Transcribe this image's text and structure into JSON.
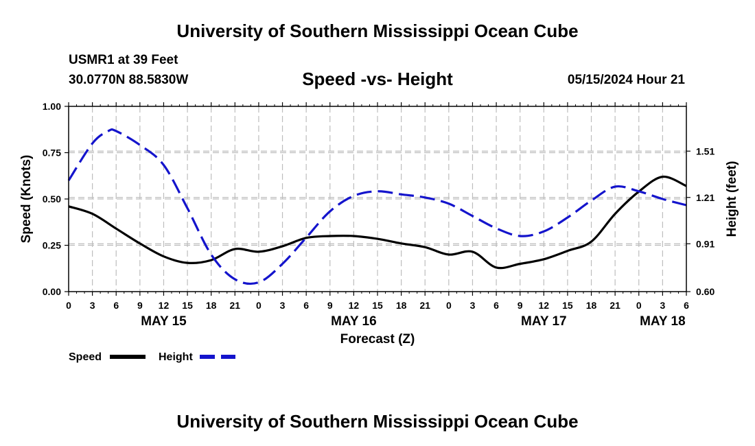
{
  "header": {
    "title": "University of Southern Mississippi Ocean Cube",
    "station": "USMR1 at 39 Feet",
    "coords": "30.0770N  88.5830W",
    "timestamp": "05/15/2024 Hour 21"
  },
  "footer": {
    "title": "University of Southern Mississippi Ocean Cube"
  },
  "colors": {
    "speed": "#000000",
    "height": "#1414cc",
    "grid": "#bdbdbd"
  },
  "chart_data": {
    "type": "line",
    "title": "Speed -vs- Height",
    "xlabel": "Forecast (Z)",
    "ylabel": "Speed (Knots)",
    "y2label": "Height (feet)",
    "xlim": [
      0,
      78
    ],
    "ylim": [
      0,
      1
    ],
    "y2lim": [
      0.6,
      1.8
    ],
    "x_tick_labels": [
      "0",
      "3",
      "6",
      "9",
      "12",
      "15",
      "18",
      "21",
      "0",
      "3",
      "6",
      "9",
      "12",
      "15",
      "18",
      "21",
      "0",
      "3",
      "6",
      "9",
      "12",
      "15",
      "18",
      "21",
      "0",
      "3",
      "6"
    ],
    "y_ticks": [
      {
        "value": 0,
        "label": "0.00"
      },
      {
        "value": 0.25,
        "label": "0.25"
      },
      {
        "value": 0.5,
        "label": "0.50"
      },
      {
        "value": 0.75,
        "label": "0.75"
      },
      {
        "value": 1,
        "label": "1.00"
      }
    ],
    "y2_ticks": [
      {
        "value": 0.6,
        "label": "0.60"
      },
      {
        "value": 0.91,
        "label": "0.91"
      },
      {
        "value": 1.21,
        "label": "1.21"
      },
      {
        "value": 1.51,
        "label": "1.51"
      }
    ],
    "day_labels": [
      {
        "x": 12,
        "label": "MAY 15"
      },
      {
        "x": 36,
        "label": "MAY 16"
      },
      {
        "x": 60,
        "label": "MAY 17"
      },
      {
        "x": 75,
        "label": "MAY 18"
      }
    ],
    "series": [
      {
        "name": "Speed",
        "axis": "left",
        "style": "solid",
        "x": [
          0,
          3,
          6,
          9,
          12,
          15,
          18,
          21,
          24,
          27,
          30,
          33,
          36,
          39,
          42,
          45,
          48,
          51,
          54,
          57,
          60,
          63,
          66,
          69,
          72,
          75,
          78
        ],
        "y": [
          0.46,
          0.42,
          0.34,
          0.26,
          0.19,
          0.155,
          0.17,
          0.23,
          0.215,
          0.245,
          0.29,
          0.3,
          0.3,
          0.285,
          0.26,
          0.24,
          0.2,
          0.215,
          0.13,
          0.15,
          0.175,
          0.22,
          0.27,
          0.42,
          0.54,
          0.62,
          0.57
        ]
      },
      {
        "name": "Height",
        "axis": "right",
        "style": "dashed",
        "x": [
          0,
          3,
          5,
          6,
          9,
          12,
          15,
          18,
          21,
          24,
          27,
          30,
          33,
          36,
          39,
          42,
          45,
          48,
          51,
          54,
          57,
          60,
          63,
          66,
          69,
          72,
          75,
          78
        ],
        "y": [
          1.32,
          1.56,
          1.64,
          1.64,
          1.55,
          1.42,
          1.14,
          0.84,
          0.68,
          0.66,
          0.78,
          0.95,
          1.12,
          1.22,
          1.25,
          1.23,
          1.21,
          1.17,
          1.09,
          1.01,
          0.96,
          0.99,
          1.08,
          1.19,
          1.28,
          1.25,
          1.2,
          1.16
        ]
      }
    ],
    "legend": [
      {
        "name": "Speed",
        "style": "solid"
      },
      {
        "name": "Height",
        "style": "dashed"
      }
    ]
  }
}
